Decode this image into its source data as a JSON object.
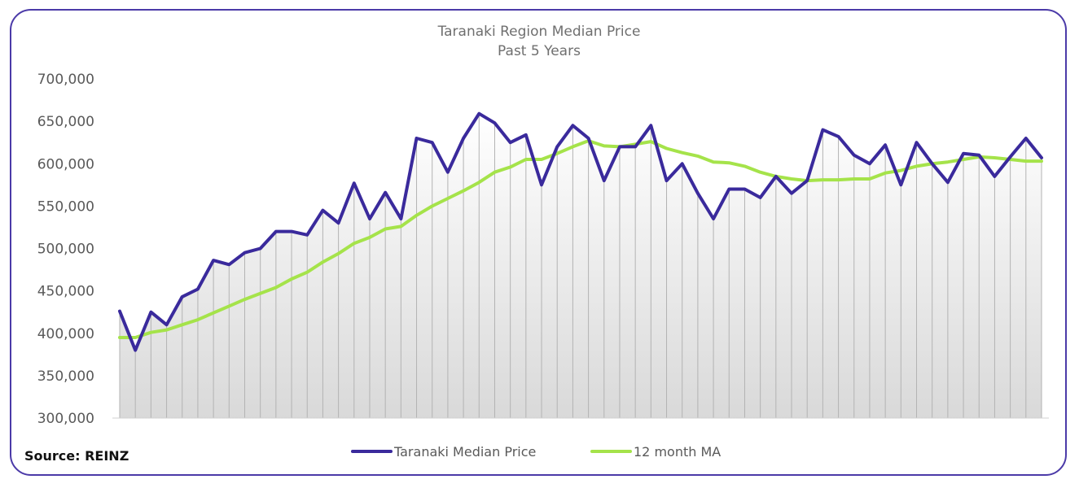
{
  "chart_data": {
    "type": "line",
    "title": "Taranaki Region Median Price",
    "subtitle": "Past 5 Years",
    "ylim": [
      300000,
      700000
    ],
    "yticks": [
      "700,000",
      "650,000",
      "600,000",
      "550,000",
      "500,000",
      "450,000",
      "400,000",
      "350,000",
      "300,000"
    ],
    "grid": "vertical drop lines",
    "legend_placement": "bottom-center",
    "series": [
      {
        "name": "Taranaki Median Price",
        "color": "#3a2a9c",
        "values": [
          426000,
          380000,
          425000,
          410000,
          443000,
          452000,
          486000,
          481000,
          495000,
          500000,
          520000,
          520000,
          516000,
          545000,
          530000,
          577000,
          535000,
          566000,
          535000,
          630000,
          625000,
          590000,
          630000,
          659000,
          648000,
          625000,
          634000,
          575000,
          620000,
          645000,
          630000,
          580000,
          620000,
          620000,
          645000,
          580000,
          600000,
          565000,
          535000,
          570000,
          570000,
          560000,
          585000,
          565000,
          580000,
          640000,
          632000,
          610000,
          600000,
          622000,
          575000,
          625000,
          600000,
          578000,
          612000,
          610000,
          585000,
          608000,
          630000,
          607000
        ]
      },
      {
        "name": "12 month MA",
        "color": "#a5e34a",
        "values": [
          395000,
          395000,
          401000,
          404000,
          410000,
          416000,
          424000,
          432000,
          440000,
          447000,
          454000,
          464000,
          472000,
          484000,
          494000,
          506000,
          513000,
          523000,
          526000,
          539000,
          550000,
          559000,
          568000,
          578000,
          590000,
          596000,
          605000,
          605000,
          612000,
          620000,
          627000,
          621000,
          620000,
          623000,
          626000,
          618000,
          613000,
          609000,
          602000,
          601000,
          597000,
          590000,
          585000,
          582000,
          580000,
          581000,
          581000,
          582000,
          582000,
          589000,
          592000,
          597000,
          600000,
          602000,
          605000,
          608000,
          607000,
          605000,
          603000,
          603000
        ]
      }
    ]
  },
  "source_label": "Source: REINZ"
}
